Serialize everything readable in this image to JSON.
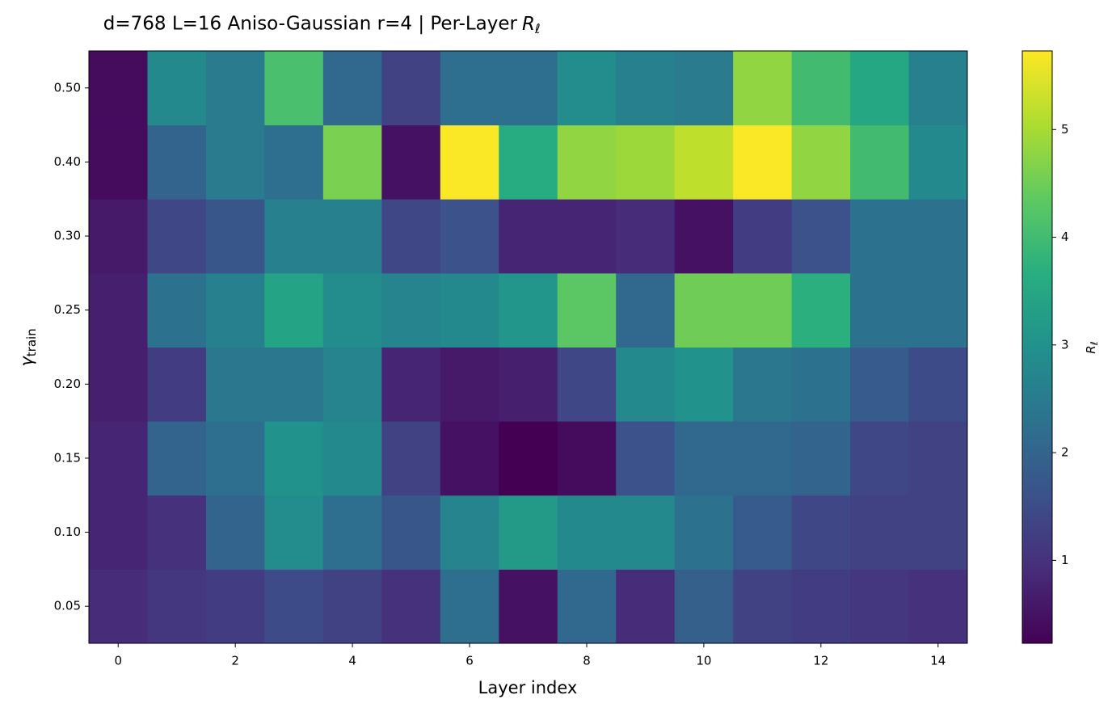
{
  "chart_data": {
    "type": "heatmap",
    "title": "d=768  L=16  Aniso-Gaussian r=4  |  Per-Layer",
    "title_symbol": {
      "symbol": "R",
      "subscript": "ℓ"
    },
    "xlabel": "Layer index",
    "ylabel": {
      "symbol": "γ",
      "subscript": "train"
    },
    "colorbar_label": {
      "symbol": "R",
      "subscript": "ℓ"
    },
    "colormap": "viridis",
    "x": [
      0,
      1,
      2,
      3,
      4,
      5,
      6,
      7,
      8,
      9,
      10,
      11,
      12,
      13,
      14
    ],
    "xlim": [
      -0.5,
      14.5
    ],
    "xticks": [
      0,
      2,
      4,
      6,
      8,
      10,
      12,
      14
    ],
    "y": [
      "0.05",
      "0.10",
      "0.15",
      "0.20",
      "0.25",
      "0.30",
      "0.40",
      "0.50"
    ],
    "z": [
      [
        0.9,
        1.1,
        1.2,
        1.5,
        1.3,
        1.0,
        2.2,
        0.5,
        2.1,
        0.9,
        1.9,
        1.3,
        1.2,
        1.1,
        1.0
      ],
      [
        0.8,
        1.0,
        2.0,
        2.9,
        2.2,
        1.7,
        2.7,
        3.2,
        2.8,
        2.8,
        2.3,
        1.8,
        1.4,
        1.3,
        1.3
      ],
      [
        0.8,
        2.0,
        2.2,
        3.0,
        2.8,
        1.3,
        0.5,
        0.23,
        0.4,
        1.6,
        2.1,
        2.1,
        2.0,
        1.4,
        1.3
      ],
      [
        0.7,
        1.2,
        2.4,
        2.4,
        2.7,
        0.8,
        0.6,
        0.7,
        1.4,
        2.8,
        3.0,
        2.4,
        2.3,
        1.8,
        1.5
      ],
      [
        0.7,
        2.3,
        2.6,
        3.4,
        2.9,
        2.7,
        2.8,
        3.1,
        4.3,
        2.1,
        4.5,
        4.5,
        3.7,
        2.3,
        2.3
      ],
      [
        0.6,
        1.4,
        1.7,
        2.6,
        2.6,
        1.4,
        1.6,
        0.8,
        0.8,
        0.9,
        0.5,
        1.2,
        1.6,
        2.3,
        2.3
      ],
      [
        0.4,
        2.0,
        2.5,
        2.2,
        4.6,
        0.5,
        5.7,
        3.6,
        4.8,
        4.9,
        5.2,
        5.7,
        4.8,
        4.0,
        2.8
      ],
      [
        0.4,
        2.8,
        2.5,
        4.1,
        2.1,
        1.3,
        2.2,
        2.2,
        2.9,
        2.6,
        2.5,
        4.8,
        4.0,
        3.5,
        2.6
      ]
    ],
    "clim": [
      0.23,
      5.73
    ],
    "cticks": [
      1,
      2,
      3,
      4,
      5
    ]
  }
}
